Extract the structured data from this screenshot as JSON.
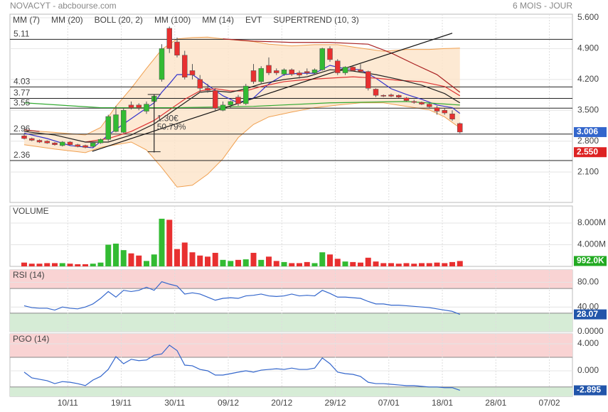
{
  "chart_data": [
    {
      "type": "candlestick",
      "title": "NOVACYT - abcbourse.com",
      "subtitle": "6 MOIS - JOUR",
      "up_color": "#33bb33",
      "down_color": "#e83030",
      "ylim": [
        1.41,
        5.68
      ],
      "yticks": [
        {
          "value": 5.6,
          "label": "5.600"
        },
        {
          "value": 4.9,
          "label": "4.900"
        },
        {
          "value": 4.2,
          "label": "4.200"
        },
        {
          "value": 3.5,
          "label": "3.500"
        },
        {
          "value": 2.8,
          "label": "2.800"
        },
        {
          "value": 2.1,
          "label": "2.100"
        }
      ],
      "open": [
        2.92,
        2.86,
        2.82,
        2.8,
        2.76,
        2.7,
        2.78,
        2.72,
        2.7,
        2.68,
        2.76,
        2.84,
        3.02,
        3.0,
        3.62,
        3.62,
        3.48,
        3.7,
        4.2,
        5.36,
        5.05,
        4.75,
        4.4,
        4.2,
        4.0,
        3.95,
        3.5,
        3.62,
        3.8,
        3.65,
        4.4,
        4.15,
        4.52,
        4.4,
        4.32,
        4.42,
        4.35,
        4.38,
        4.35,
        4.42,
        4.9,
        4.62,
        4.35,
        4.48,
        4.42,
        4.38,
        3.98,
        3.84,
        3.85,
        3.84,
        3.78,
        3.7,
        3.68,
        3.64,
        3.56,
        3.5,
        3.42,
        3.2
      ],
      "high": [
        2.96,
        2.88,
        2.84,
        2.82,
        2.78,
        2.8,
        2.8,
        2.74,
        2.72,
        2.78,
        2.86,
        3.4,
        3.6,
        3.55,
        3.7,
        3.66,
        3.7,
        3.85,
        5.0,
        5.4,
        5.15,
        4.85,
        4.55,
        4.3,
        4.1,
        4.0,
        3.7,
        3.72,
        3.85,
        4.1,
        4.55,
        4.5,
        4.7,
        4.45,
        4.45,
        4.45,
        4.4,
        4.45,
        4.45,
        4.92,
        4.95,
        4.66,
        4.5,
        4.5,
        4.55,
        4.4,
        4.0,
        3.86,
        3.88,
        3.86,
        3.8,
        3.74,
        3.7,
        3.66,
        3.6,
        3.54,
        3.5,
        3.22
      ],
      "low": [
        2.84,
        2.8,
        2.76,
        2.74,
        2.7,
        2.68,
        2.7,
        2.66,
        2.64,
        2.66,
        2.74,
        2.8,
        3.0,
        2.98,
        3.52,
        3.5,
        3.42,
        2.54,
        4.15,
        4.8,
        4.7,
        4.2,
        4.2,
        3.9,
        3.9,
        3.5,
        3.48,
        3.55,
        3.6,
        3.62,
        4.1,
        4.1,
        4.3,
        4.3,
        4.28,
        4.28,
        4.22,
        4.3,
        4.3,
        4.4,
        4.6,
        4.3,
        4.3,
        4.38,
        4.35,
        3.95,
        3.8,
        3.8,
        3.8,
        3.78,
        3.7,
        3.65,
        3.62,
        3.56,
        3.4,
        3.4,
        3.26,
        2.98
      ],
      "close": [
        2.86,
        2.82,
        2.78,
        2.76,
        2.72,
        2.78,
        2.72,
        2.68,
        2.66,
        2.76,
        2.84,
        3.36,
        3.4,
        3.5,
        3.56,
        3.56,
        3.64,
        3.82,
        4.9,
        4.9,
        4.75,
        4.25,
        4.3,
        4.0,
        3.95,
        3.55,
        3.62,
        3.7,
        3.65,
        4.05,
        4.15,
        4.45,
        4.35,
        4.35,
        4.42,
        4.32,
        4.3,
        4.35,
        4.42,
        4.9,
        4.65,
        4.35,
        4.48,
        4.4,
        4.38,
        4.0,
        3.84,
        3.82,
        3.82,
        3.8,
        3.72,
        3.68,
        3.64,
        3.58,
        3.48,
        3.44,
        3.3,
        3.006
      ],
      "series": [
        {
          "name": "MM (7)",
          "color": "#3333cc",
          "x": [
            0,
            3,
            6,
            9,
            11,
            13,
            15,
            17,
            18,
            19,
            20,
            22,
            24,
            26,
            28,
            30,
            32,
            34,
            36,
            38,
            40,
            42,
            44,
            46,
            48,
            50,
            52,
            54,
            56,
            57
          ],
          "values": [
            2.98,
            2.86,
            2.7,
            2.65,
            2.94,
            3.19,
            3.43,
            3.67,
            3.91,
            4.1,
            4.31,
            4.31,
            4.07,
            3.83,
            3.67,
            3.78,
            4.1,
            4.31,
            4.34,
            4.34,
            4.52,
            4.44,
            4.42,
            4.23,
            3.99,
            3.86,
            3.75,
            3.62,
            3.56,
            3.43
          ]
        },
        {
          "name": "MM (20)",
          "color": "#dd3333",
          "x": [
            8,
            11,
            14,
            17,
            19,
            21,
            23,
            25,
            27,
            29,
            31,
            34,
            37,
            40,
            43,
            46,
            49,
            52,
            55,
            57
          ],
          "values": [
            2.78,
            2.86,
            3.02,
            3.27,
            3.51,
            3.75,
            3.94,
            3.99,
            3.94,
            3.94,
            4.04,
            4.15,
            4.2,
            4.23,
            4.26,
            4.23,
            4.18,
            4.15,
            4.04,
            3.83
          ]
        },
        {
          "name": "BOLL (20, 2)",
          "color": "#f0a050",
          "x": [
            0,
            4,
            8,
            10,
            12,
            14,
            16,
            18,
            20,
            22,
            24,
            26,
            28,
            30,
            32,
            35,
            38,
            41,
            44,
            47,
            50,
            53,
            55,
            57
          ],
          "upper": [
            3.05,
            3.0,
            2.94,
            3.11,
            3.59,
            4.0,
            4.45,
            4.88,
            5.12,
            5.15,
            5.16,
            5.12,
            5.09,
            5.06,
            5.0,
            4.96,
            4.99,
            4.99,
            4.91,
            4.84,
            4.88,
            4.88,
            4.9,
            4.91
          ],
          "lower": [
            2.72,
            2.62,
            2.54,
            2.66,
            2.72,
            2.78,
            2.6,
            2.2,
            1.76,
            1.8,
            2.05,
            2.4,
            2.88,
            3.18,
            3.35,
            3.46,
            3.56,
            3.62,
            3.67,
            3.67,
            3.59,
            3.51,
            3.35,
            3.1
          ]
        },
        {
          "name": "MM (100)",
          "color": "#33aa33",
          "x": [
            0,
            10,
            20,
            30,
            40,
            50,
            57
          ],
          "values": [
            3.67,
            3.56,
            3.56,
            3.59,
            3.67,
            3.7,
            3.62
          ]
        },
        {
          "name": "MM (14)",
          "color": "#222222",
          "x": [
            0,
            4,
            8,
            11,
            14,
            17,
            19,
            21,
            23,
            25,
            27,
            29,
            31,
            34,
            37,
            40,
            43,
            46,
            49,
            52,
            55,
            57
          ],
          "values": [
            3.02,
            2.94,
            2.78,
            2.78,
            2.94,
            3.19,
            3.43,
            3.67,
            3.91,
            3.94,
            3.91,
            3.99,
            4.1,
            4.2,
            4.26,
            4.42,
            4.39,
            4.31,
            4.2,
            4.07,
            3.88,
            3.67
          ]
        },
        {
          "name": "EVT",
          "color": "#222222"
        },
        {
          "name": "SUPERTREND (10, 3)",
          "color": "#aa2222",
          "x": [
            0,
            2,
            4,
            26,
            30,
            35,
            40,
            45,
            48,
            51,
            54,
            57
          ],
          "values": [
            3.06,
            3.02,
            null,
            5.12,
            5.07,
            5.04,
            5.04,
            5.0,
            4.8,
            4.55,
            4.31,
            3.91
          ]
        }
      ],
      "levels": [
        5.11,
        4.03,
        3.77,
        3.55,
        2.96,
        2.36
      ],
      "trendline": {
        "x": [
          8.9,
          56
        ],
        "values": [
          2.57,
          5.25
        ]
      },
      "measure": {
        "x": 17,
        "from": 2.56,
        "to": 3.86,
        "labels": [
          "1.30€",
          "50.79%"
        ]
      },
      "marker": {
        "value": 2.55,
        "label": "2.550"
      }
    },
    {
      "type": "bar",
      "title": "VOLUME",
      "ylim": [
        0,
        11150000
      ],
      "yticks": [
        {
          "value": 8000000,
          "label": "8.000M"
        },
        {
          "value": 4000000,
          "label": "4.000M"
        }
      ],
      "values": [
        700000,
        500000,
        500000,
        600000,
        600000,
        600000,
        500000,
        400000,
        400000,
        500000,
        700000,
        4000000,
        4200000,
        3000000,
        2400000,
        2000000,
        1000000,
        2200000,
        8800000,
        8600000,
        3200000,
        4400000,
        2600000,
        2000000,
        1800000,
        2500000,
        1200000,
        1000000,
        1200000,
        1300000,
        2500000,
        1200000,
        1800000,
        1000000,
        800000,
        600000,
        600000,
        800000,
        600000,
        2600000,
        2200000,
        1400000,
        900000,
        800000,
        700000,
        1600000,
        900000,
        600000,
        600000,
        500000,
        600000,
        500000,
        600000,
        600000,
        700000,
        600000,
        800000,
        992000
      ],
      "last_value_label": "992.0K"
    },
    {
      "type": "line",
      "title": "RSI (14)",
      "color": "#3366cc",
      "ylim": [
        0,
        100
      ],
      "yticks": [
        {
          "value": 80,
          "label": "80.00"
        },
        {
          "value": 40,
          "label": "40.00"
        },
        {
          "value": 0,
          "label": "0.0000"
        }
      ],
      "zone_levels": [
        70,
        30
      ],
      "values": [
        42,
        39,
        38,
        38,
        35,
        40,
        38,
        37,
        40,
        45,
        54,
        65,
        56,
        67,
        65,
        67,
        72,
        67,
        81,
        77,
        74,
        61,
        63,
        61,
        56,
        51,
        54,
        55,
        54,
        58,
        59,
        61,
        58,
        57,
        58,
        61,
        58,
        59,
        58,
        67,
        62,
        56,
        56,
        55,
        54,
        49,
        45,
        45,
        43,
        43,
        42,
        41,
        40,
        39,
        37,
        35,
        33,
        28.07
      ]
    },
    {
      "type": "line",
      "title": "PGO (14)",
      "color": "#3366cc",
      "ylim": [
        -3.79,
        5.47
      ],
      "yticks": [
        {
          "value": 4,
          "label": "4.000"
        },
        {
          "value": 0,
          "label": "0.000"
        }
      ],
      "zone_levels": [
        2,
        -2.4
      ],
      "values": [
        -0.2,
        -1.05,
        -1.26,
        -1.47,
        -1.9,
        -1.6,
        -1.7,
        -1.9,
        -2.2,
        -1.37,
        -0.84,
        0.21,
        2.1,
        1.05,
        1.7,
        1.5,
        1.6,
        2.3,
        2.5,
        3.8,
        3.0,
        0.84,
        0.74,
        0.2,
        0,
        -0.63,
        -0.63,
        -0.42,
        -0.2,
        0,
        -0.2,
        0.1,
        0.2,
        0.3,
        0.2,
        0.4,
        0.2,
        0.2,
        0.4,
        1.9,
        1.05,
        -0.2,
        -0.42,
        -0.53,
        -0.84,
        -1.7,
        -1.9,
        -1.9,
        -2.0,
        -2.1,
        -2.2,
        -2.2,
        -2.3,
        -2.4,
        -2.4,
        -2.5,
        -2.5,
        -2.895
      ],
      "xlim": [
        -1.86,
        71.72
      ],
      "xticks": [
        {
          "value": 5.7,
          "label": "10/11"
        },
        {
          "value": 12.7,
          "label": "19/11"
        },
        {
          "value": 19.7,
          "label": "30/11"
        },
        {
          "value": 26.7,
          "label": "09/12"
        },
        {
          "value": 33.7,
          "label": "20/12"
        },
        {
          "value": 40.7,
          "label": "29/12"
        },
        {
          "value": 47.7,
          "label": "07/01"
        },
        {
          "value": 54.7,
          "label": "18/01"
        },
        {
          "value": 61.7,
          "label": "28/01"
        },
        {
          "value": 68.7,
          "label": "07/02"
        }
      ]
    }
  ]
}
